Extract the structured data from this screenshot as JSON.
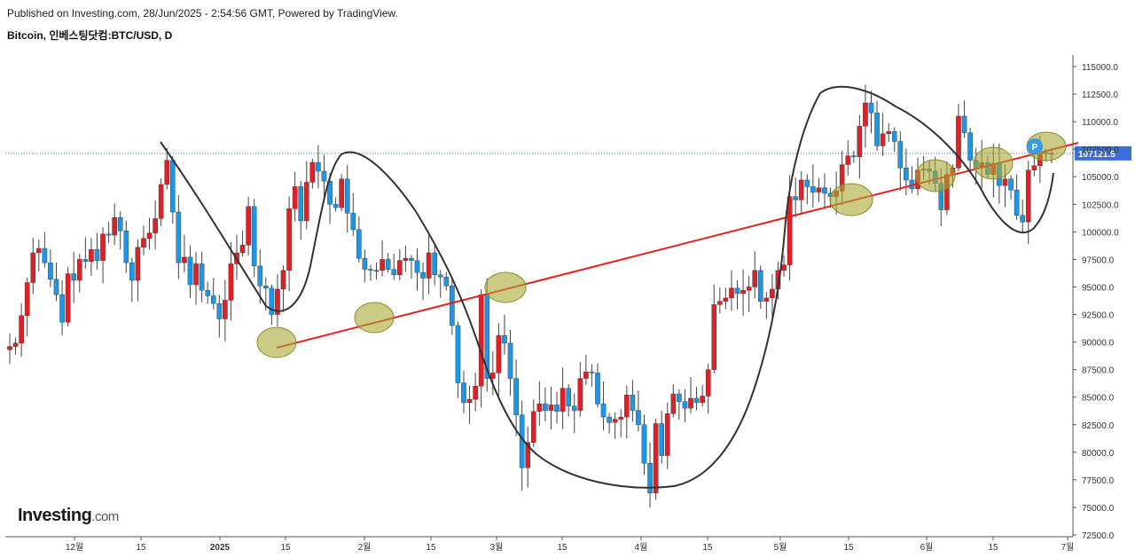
{
  "header": {
    "published": "Published on Investing.com, 28/Jun/2025 - 2:54:56 GMT, Powered by TradingView.",
    "title": "Bitcoin, 인베스팅닷컴:BTC/USD, D"
  },
  "logo": {
    "main": "Investing",
    "suffix": ".com"
  },
  "chart_data": {
    "type": "candlestick",
    "symbol": "BTC/USD",
    "interval": "D",
    "ylim": [
      72500,
      117000
    ],
    "y_ticks": [
      72500,
      75000,
      77500,
      80000,
      82500,
      85000,
      87500,
      90000,
      92500,
      95000,
      97500,
      100000,
      102500,
      105000,
      107500,
      110000,
      112500,
      115000
    ],
    "x_ticks": [
      "12월",
      "15",
      "2025",
      "15",
      "2월",
      "15",
      "3월",
      "15",
      "4월",
      "15",
      "5월",
      "15",
      "6월",
      "15",
      "7월"
    ],
    "last_price": 107121.5,
    "last_price_label": "107121.5",
    "colors": {
      "up": "#e01f26",
      "down": "#1e96e6",
      "trendline": "#e8211d",
      "highlight": "#a8a833",
      "last_price": "#3a6ed8"
    },
    "marker_label": "P",
    "closes": [
      89600,
      89900,
      92400,
      95400,
      98100,
      98500,
      97200,
      95700,
      94300,
      91800,
      96200,
      95600,
      97500,
      97300,
      98400,
      97400,
      99800,
      99700,
      101300,
      100100,
      97200,
      95600,
      98600,
      99400,
      99900,
      101200,
      104300,
      106500,
      101800,
      97200,
      97700,
      95200,
      97100,
      94700,
      94200,
      93500,
      92100,
      93800,
      97100,
      98100,
      98800,
      102300,
      96900,
      95100,
      94900,
      92500,
      94800,
      96500,
      102100,
      104100,
      101000,
      104500,
      106300,
      105500,
      104600,
      102500,
      102200,
      104800,
      101700,
      100200,
      97600,
      96600,
      96500,
      96500,
      97500,
      96600,
      96100,
      97400,
      97600,
      97400,
      96300,
      95800,
      98100,
      96100,
      95900,
      95100,
      91500,
      86300,
      84500,
      84800,
      86000,
      94300,
      86700,
      87200,
      90600,
      89900,
      86700,
      83400,
      78600,
      80900,
      83700,
      84400,
      83800,
      84300,
      83700,
      85800,
      84200,
      83800,
      86700,
      87300,
      87200,
      84400,
      83200,
      82700,
      83000,
      83200,
      85200,
      83800,
      82500,
      79000,
      76300,
      82600,
      79700,
      83500,
      85300,
      84600,
      84000,
      84900,
      84500,
      85100,
      87500,
      93400,
      93700,
      94000,
      94900,
      94400,
      94700,
      95000,
      96500,
      93700,
      94000,
      94800,
      96500,
      97000,
      103200,
      102900,
      104700,
      104100,
      103600,
      104000,
      103500,
      103200,
      103700,
      106100,
      106900,
      106800,
      109600,
      111700,
      110800,
      107800,
      108900,
      109100,
      108200,
      105800,
      104700,
      103900,
      105600,
      105700,
      105500,
      104400,
      102000,
      105200,
      105800,
      110500,
      109000,
      106500,
      105800,
      106300,
      105200,
      106200,
      104200,
      104800,
      103800,
      101500,
      100900,
      105600,
      106000,
      107200,
      107100,
      107121.5
    ],
    "trendline": {
      "from": {
        "date": "2025-01-13",
        "price": 89500
      },
      "to": {
        "date": "2025-06-28",
        "price": 108000
      }
    }
  }
}
